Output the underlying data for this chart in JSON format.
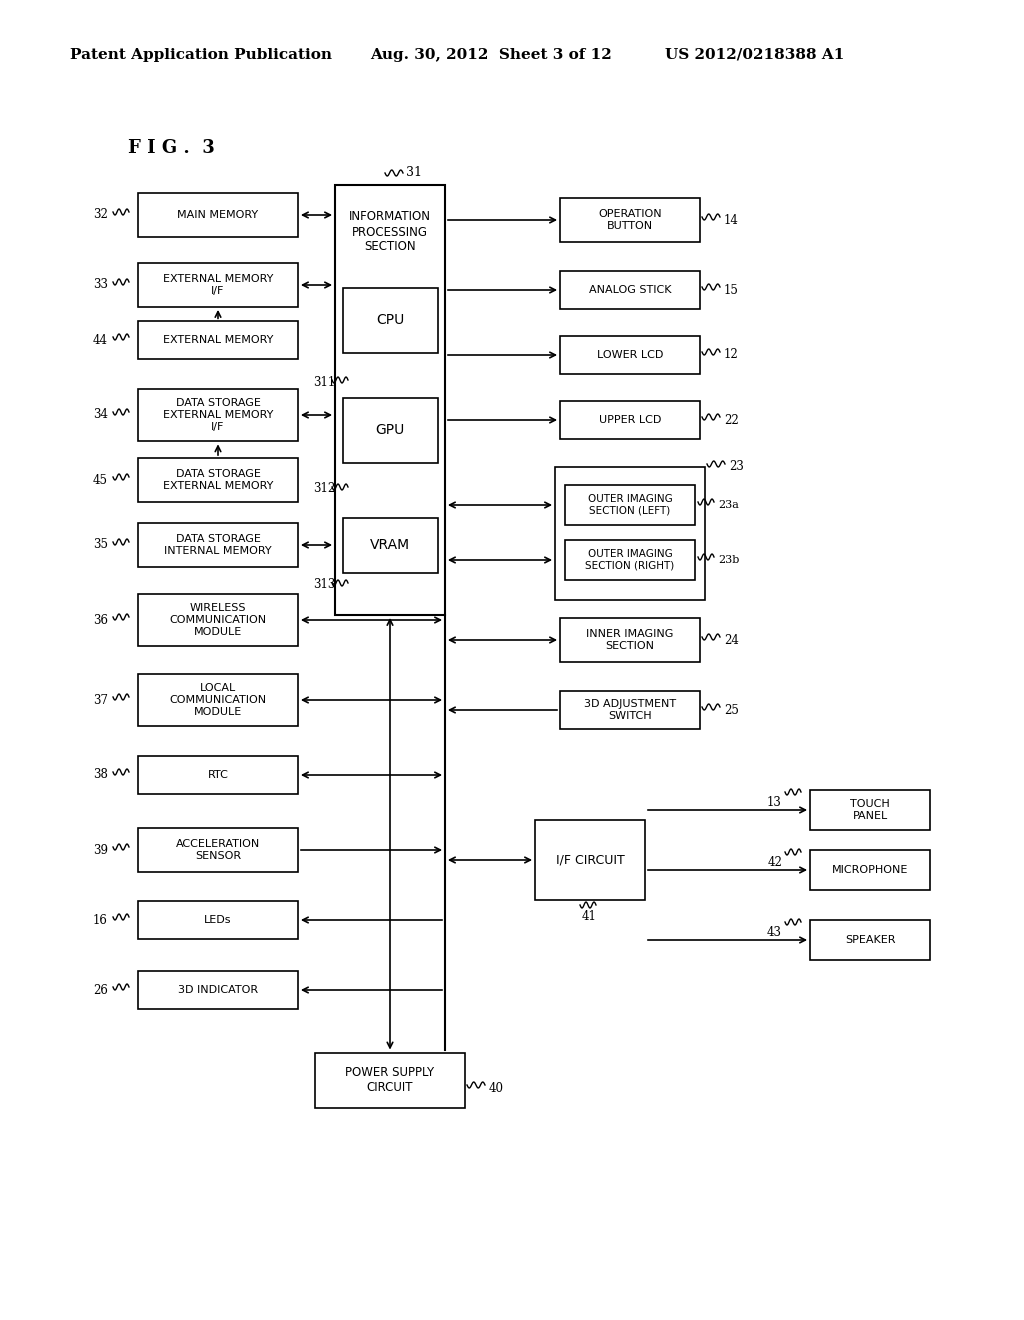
{
  "header_left": "Patent Application Publication",
  "header_mid": "Aug. 30, 2012  Sheet 3 of 12",
  "header_right": "US 2012/0218388 A1",
  "fig_label": "FIG. 3",
  "background": "#ffffff"
}
